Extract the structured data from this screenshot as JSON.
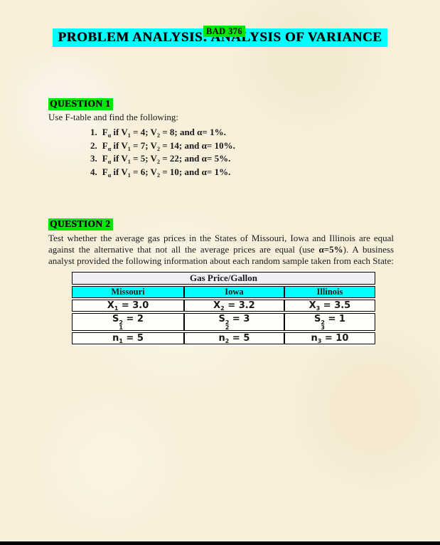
{
  "page": {
    "course_code": "BAD 376",
    "title": "PROBLEM ANALYSIS: ANALYSIS OF VARIANCE"
  },
  "colors": {
    "paper": "#f8efdb",
    "highlight_green": "#00e607",
    "highlight_cyan": "#00ffff",
    "table_state_row": "#00ffff",
    "bottom_bar": "#000000"
  },
  "q1": {
    "heading": "QUESTION 1",
    "intro": "Use F-table and find the following:",
    "frag": {
      "f": "F",
      "f_sub": "α",
      "if_v": " if V",
      "sub1": "1",
      "sub2": "2",
      "eq": " = ",
      "semi_v": "; V",
      "and_alpha": "; and α= ",
      "end": "."
    },
    "items": [
      {
        "num": "1.",
        "v1": "4",
        "v2": "8",
        "alpha": "1%"
      },
      {
        "num": "2.",
        "v1": "7",
        "v2": "14",
        "alpha": "10%"
      },
      {
        "num": "3.",
        "v1": "5",
        "v2": "22",
        "alpha": "5%"
      },
      {
        "num": "4.",
        "v1": "6",
        "v2": "10",
        "alpha": "1%"
      }
    ]
  },
  "q2": {
    "heading": "QUESTION 2",
    "para_before": "Test whether the average gas prices in the States of Missouri, Iowa and Illinois are equal against the alternative that not all the average prices are equal (use ",
    "para_bold": "α=5%",
    "para_after": "). A business analyst provided the following information about each random sample taken from each State:"
  },
  "table": {
    "title": "Gas Price/Gallon",
    "columns": [
      "Missouri",
      "Iowa",
      "Illinois"
    ],
    "eq": " = ",
    "mean_row": [
      {
        "base": "X",
        "sub": "1",
        "value": "3.0"
      },
      {
        "base": "X",
        "sub": "2",
        "value": "3.2"
      },
      {
        "base": "X",
        "sub": "3",
        "value": "3.5"
      }
    ],
    "var_row": [
      {
        "base": "S",
        "sup": "2",
        "sub": "1",
        "value": "2"
      },
      {
        "base": "S",
        "sup": "2",
        "sub": "2",
        "value": "3"
      },
      {
        "base": "S",
        "sup": "2",
        "sub": "3",
        "value": "1"
      }
    ],
    "n_row": [
      {
        "base": "n",
        "sub": "1",
        "value": "5"
      },
      {
        "base": "n",
        "sub": "2",
        "value": "5"
      },
      {
        "base": "n",
        "sub": "3",
        "value": "10"
      }
    ]
  }
}
